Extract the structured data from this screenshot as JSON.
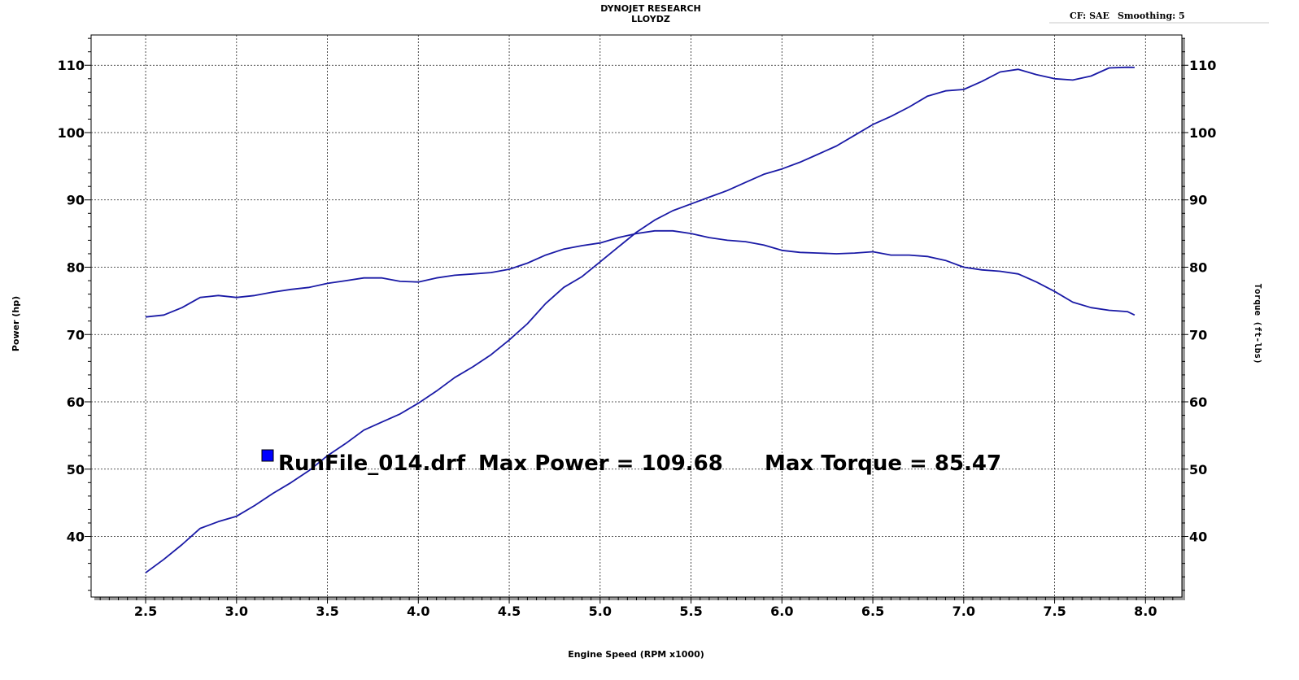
{
  "header": {
    "title": "DYNOJET RESEARCH",
    "subtitle": "LLOYDZ",
    "cf": "CF: SAE",
    "smoothing": "Smoothing: 5"
  },
  "chart_data": {
    "type": "line",
    "xlabel": "Engine Speed (RPM x1000)",
    "ylabel": "Power (hp)",
    "y2label": "Torque (ft-lbs)",
    "xlim": [
      2.2,
      8.2
    ],
    "ylim": [
      31,
      114.5
    ],
    "y2lim": [
      31,
      114.5
    ],
    "xticks": [
      "2.5",
      "3.0",
      "3.5",
      "4.0",
      "4.5",
      "5.0",
      "5.5",
      "6.0",
      "6.5",
      "7.0",
      "7.5",
      "8.0"
    ],
    "yticks": [
      "40",
      "50",
      "60",
      "70",
      "80",
      "90",
      "100",
      "110"
    ],
    "grid": true,
    "series_color": "#1a1aa6",
    "annotation": {
      "marker_color": "#0000ff",
      "file": "RunFile_014.drf",
      "max_power": "Max Power = 109.68",
      "max_torque": "Max Torque = 85.47",
      "position": "middle-left"
    },
    "series": [
      {
        "name": "Power",
        "axis": "left",
        "x": [
          2.5,
          2.6,
          2.7,
          2.8,
          2.9,
          3.0,
          3.1,
          3.2,
          3.3,
          3.4,
          3.5,
          3.6,
          3.7,
          3.8,
          3.9,
          4.0,
          4.1,
          4.2,
          4.3,
          4.4,
          4.5,
          4.6,
          4.7,
          4.8,
          4.9,
          5.0,
          5.1,
          5.2,
          5.3,
          5.4,
          5.5,
          5.6,
          5.7,
          5.8,
          5.9,
          6.0,
          6.1,
          6.2,
          6.3,
          6.4,
          6.5,
          6.6,
          6.7,
          6.8,
          6.9,
          7.0,
          7.1,
          7.2,
          7.3,
          7.4,
          7.5,
          7.6,
          7.7,
          7.8,
          7.9,
          7.94
        ],
        "y": [
          34.6,
          36.6,
          38.8,
          41.2,
          42.2,
          43.0,
          44.6,
          46.4,
          48.0,
          49.8,
          52.0,
          53.8,
          55.8,
          57.0,
          58.2,
          59.8,
          61.6,
          63.6,
          65.2,
          67.0,
          69.2,
          71.6,
          74.6,
          77.0,
          78.6,
          80.8,
          83.0,
          85.2,
          87.0,
          88.4,
          89.4,
          90.4,
          91.4,
          92.6,
          93.8,
          94.6,
          95.6,
          96.8,
          98.0,
          99.6,
          101.2,
          102.4,
          103.8,
          105.4,
          106.2,
          106.4,
          107.6,
          109.0,
          109.4,
          108.6,
          108.0,
          107.8,
          108.4,
          109.6,
          109.7,
          109.68
        ]
      },
      {
        "name": "Torque",
        "axis": "right",
        "x": [
          2.5,
          2.6,
          2.7,
          2.8,
          2.9,
          3.0,
          3.1,
          3.2,
          3.3,
          3.4,
          3.5,
          3.6,
          3.7,
          3.8,
          3.9,
          4.0,
          4.1,
          4.2,
          4.3,
          4.4,
          4.5,
          4.6,
          4.7,
          4.8,
          4.9,
          5.0,
          5.1,
          5.2,
          5.3,
          5.4,
          5.5,
          5.6,
          5.7,
          5.8,
          5.9,
          6.0,
          6.1,
          6.2,
          6.3,
          6.4,
          6.5,
          6.6,
          6.7,
          6.8,
          6.9,
          7.0,
          7.1,
          7.2,
          7.3,
          7.4,
          7.5,
          7.6,
          7.7,
          7.8,
          7.9,
          7.94
        ],
        "y": [
          72.6,
          72.9,
          74.0,
          75.5,
          75.8,
          75.5,
          75.8,
          76.3,
          76.7,
          77.0,
          77.6,
          78.0,
          78.4,
          78.4,
          77.9,
          77.8,
          78.4,
          78.8,
          79.0,
          79.2,
          79.7,
          80.6,
          81.8,
          82.7,
          83.2,
          83.6,
          84.4,
          85.0,
          85.4,
          85.4,
          85.0,
          84.4,
          84.0,
          83.8,
          83.3,
          82.5,
          82.2,
          82.1,
          82.0,
          82.1,
          82.3,
          81.8,
          81.8,
          81.6,
          81.0,
          80.0,
          79.6,
          79.4,
          79.0,
          77.8,
          76.4,
          74.8,
          74.0,
          73.6,
          73.4,
          72.9
        ]
      }
    ]
  }
}
